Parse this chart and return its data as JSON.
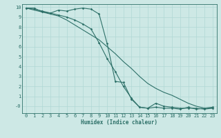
{
  "title": "",
  "xlabel": "Humidex (Indice chaleur)",
  "ylabel": "",
  "bg_color": "#cde8e5",
  "grid_color": "#b0d8d4",
  "line_color": "#2d7068",
  "xlim": [
    -0.5,
    23.5
  ],
  "ylim": [
    -0.7,
    10.3
  ],
  "xticks": [
    0,
    1,
    2,
    3,
    4,
    5,
    6,
    7,
    8,
    9,
    10,
    11,
    12,
    13,
    14,
    15,
    16,
    17,
    18,
    19,
    20,
    21,
    22,
    23
  ],
  "yticks": [
    0,
    1,
    2,
    3,
    4,
    5,
    6,
    7,
    8,
    9,
    10
  ],
  "ytick_labels": [
    "-0",
    "1",
    "2",
    "3",
    "4",
    "5",
    "6",
    "7",
    "8",
    "9",
    "10"
  ],
  "line1_x": [
    0,
    1,
    2,
    3,
    4,
    5,
    6,
    7,
    8,
    9,
    10,
    11,
    12,
    13,
    14,
    15,
    16,
    17,
    18,
    19,
    20,
    21,
    22,
    23
  ],
  "line1_y": [
    9.9,
    9.9,
    9.5,
    9.4,
    9.7,
    9.6,
    9.8,
    9.9,
    9.8,
    9.3,
    6.3,
    2.5,
    2.4,
    0.7,
    -0.1,
    -0.2,
    -0.1,
    -0.2,
    -0.2,
    -0.3,
    -0.1,
    -0.3,
    -0.2,
    -0.1
  ],
  "line2_x": [
    0,
    1,
    2,
    3,
    4,
    5,
    6,
    7,
    8,
    9,
    10,
    11,
    12,
    13,
    14,
    15,
    16,
    17,
    18,
    19,
    20,
    21,
    22,
    23
  ],
  "line2_y": [
    9.9,
    9.7,
    9.5,
    9.3,
    9.1,
    8.7,
    8.2,
    7.7,
    7.2,
    6.7,
    6.0,
    5.3,
    4.5,
    3.8,
    3.0,
    2.3,
    1.8,
    1.4,
    1.1,
    0.7,
    0.3,
    0.0,
    -0.2,
    -0.2
  ],
  "line3_x": [
    0,
    1,
    2,
    3,
    4,
    5,
    6,
    7,
    8,
    9,
    10,
    11,
    12,
    13,
    14,
    15,
    16,
    17,
    18,
    19,
    20,
    21,
    22,
    23
  ],
  "line3_y": [
    9.9,
    9.8,
    9.6,
    9.4,
    9.2,
    9.0,
    8.7,
    8.3,
    7.8,
    6.4,
    4.8,
    3.5,
    2.0,
    0.8,
    -0.1,
    -0.2,
    0.3,
    0.0,
    -0.1,
    -0.2,
    -0.2,
    -0.2,
    -0.3,
    -0.2
  ],
  "xlabel_fontsize": 5.5,
  "tick_fontsize": 5,
  "lw": 0.8,
  "marker_size": 1.8
}
